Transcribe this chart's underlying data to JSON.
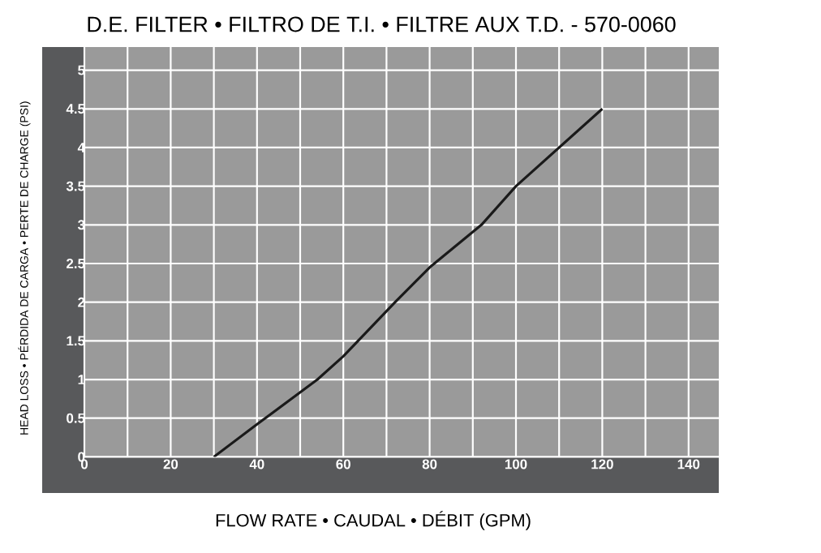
{
  "chart_data": {
    "type": "line",
    "title": "D.E. FILTER • FILTRO DE T.I. • FILTRE AUX T.D.  - 570-0060",
    "xlabel": "FLOW RATE • CAUDAL • DÉBIT (GPM)",
    "ylabel": "HEAD LOSS • PÉRDIDA DE CARGA • PERTE DE CHARGE  (PSI)",
    "x": [
      30,
      40,
      54,
      60,
      72,
      80,
      92,
      100,
      120
    ],
    "series": [
      {
        "color": "#1a1a1a",
        "values": [
          0,
          0.42,
          1,
          1.3,
          2,
          2.45,
          3,
          3.5,
          4.5
        ]
      }
    ],
    "xlim": [
      0,
      147
    ],
    "ylim": [
      0,
      5.3
    ],
    "xticks": [
      0,
      {
        "value": 10,
        "label": null
      },
      20,
      {
        "value": 30,
        "label": null
      },
      40,
      {
        "value": 50,
        "label": null
      },
      60,
      {
        "value": 70,
        "label": null
      },
      80,
      {
        "value": 90,
        "label": null
      },
      100,
      {
        "value": 110,
        "label": null
      },
      120,
      {
        "value": 130,
        "label": null
      },
      140
    ],
    "yticks": [
      0,
      0.5,
      1,
      1.5,
      2,
      2.5,
      3,
      3.5,
      4,
      4.5,
      5
    ],
    "grid": true,
    "marker": "none",
    "line_style": "solid"
  }
}
